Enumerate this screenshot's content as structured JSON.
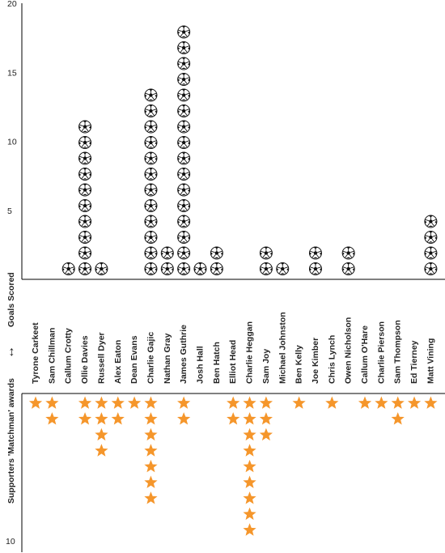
{
  "chart_data": {
    "type": "pictograph",
    "players": [
      "Tyrone Carkeet",
      "Sam Chillman",
      "Callum Crotty",
      "Ollie Davies",
      "Russell Dyer",
      "Alex Eaton",
      "Dean Evans",
      "Charlie Gajic",
      "Nathan Gray",
      "James Guthrie",
      "Josh Hall",
      "Ben Hatch",
      "Elliot Head",
      "Charlie Heggan",
      "Sam Joy",
      "Michael Johnston",
      "Ben Kelly",
      "Joe Kimber",
      "Chris Lynch",
      "Owen Nicholson",
      "Callum O'Hare",
      "Charlie Pierson",
      "Sam Thompson",
      "Ed Tierney",
      "Matt Vining"
    ],
    "series": [
      {
        "name": "Goals Scored",
        "values": [
          0,
          0,
          1,
          10,
          1,
          0,
          0,
          12,
          2,
          16,
          1,
          2,
          0,
          0,
          2,
          1,
          0,
          2,
          0,
          2,
          0,
          0,
          0,
          0,
          4
        ]
      },
      {
        "name": "Supporters 'Matchman' awards",
        "values": [
          1,
          2,
          0,
          2,
          4,
          2,
          1,
          7,
          0,
          2,
          0,
          0,
          2,
          9,
          3,
          0,
          1,
          0,
          1,
          0,
          1,
          1,
          2,
          1,
          1
        ]
      }
    ],
    "top_axis": {
      "ylim": [
        0,
        20
      ],
      "ticks": [
        "5",
        "10",
        "15",
        "20"
      ]
    },
    "bottom_axis": {
      "ylim": [
        0,
        10
      ],
      "ticks": [
        "10"
      ]
    },
    "ylabel_top": "Goals Scored",
    "ylabel_bottom": "Supporters 'Matchman' awards",
    "divider_symbol": "↔"
  },
  "colors": {
    "star": "#f5962b",
    "ball_light": "#ffffff",
    "ball_dark": "#111111",
    "axis": "#000000"
  },
  "icons": {
    "goal": "football-icon",
    "award": "star-icon"
  }
}
